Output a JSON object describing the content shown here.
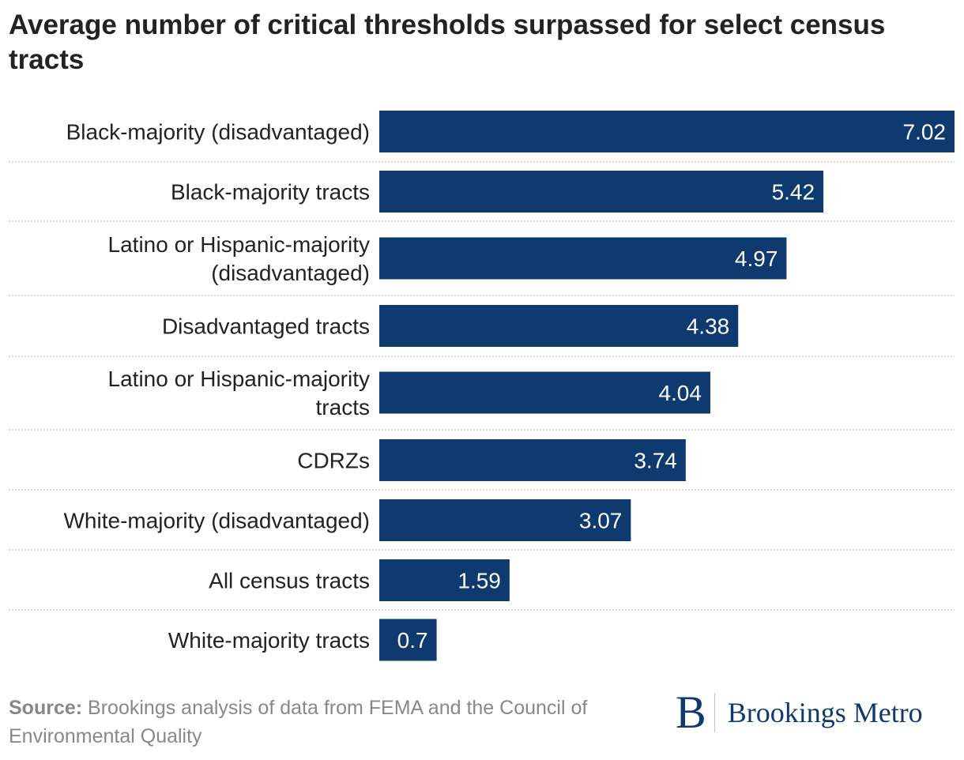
{
  "chart_data": {
    "type": "bar",
    "orientation": "horizontal",
    "title": "Average number of critical thresholds surpassed for select census tracts",
    "categories": [
      [
        "Black-majority (disadvantaged)"
      ],
      [
        "Black-majority tracts"
      ],
      [
        "Latino or Hispanic-majority",
        "(disadvantaged)"
      ],
      [
        "Disadvantaged tracts"
      ],
      [
        "Latino or Hispanic-majority",
        "tracts"
      ],
      [
        "CDRZs"
      ],
      [
        "White-majority (disadvantaged)"
      ],
      [
        "All census tracts"
      ],
      [
        "White-majority tracts"
      ]
    ],
    "values": [
      7.02,
      5.42,
      4.97,
      4.38,
      4.04,
      3.74,
      3.07,
      1.59,
      0.7
    ],
    "value_labels": [
      "7.02",
      "5.42",
      "4.97",
      "4.38",
      "4.04",
      "3.74",
      "3.07",
      "1.59",
      "0.7"
    ],
    "xlim": [
      0,
      7.02
    ],
    "xlabel": "",
    "ylabel": "",
    "grid": false,
    "bar_color": "#0e3a70",
    "separator_color": "#cccccc"
  },
  "footer": {
    "source_label": "Source:",
    "source_text": "Brookings analysis of data from FEMA and the Council of Environmental Quality"
  },
  "logo": {
    "mark": "B",
    "text": "Brookings Metro",
    "color": "#0e3a70"
  }
}
